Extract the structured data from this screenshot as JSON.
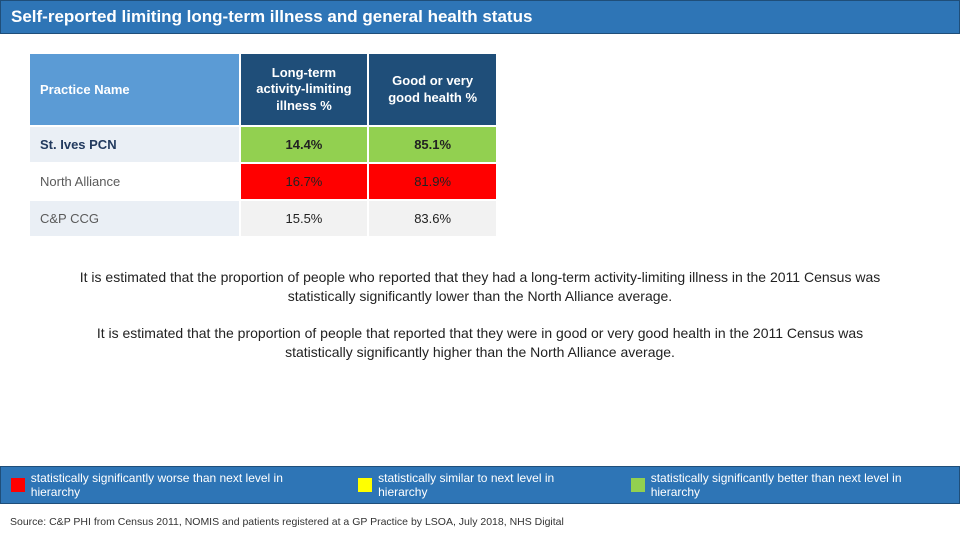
{
  "title": "Self-reported limiting long-term illness and general health status",
  "table": {
    "columns": [
      "Practice Name",
      "Long-term activity-limiting illness %",
      "Good or very good health %"
    ],
    "rows": [
      {
        "name": "St. Ives PCN",
        "bold": true,
        "alt_bg": "#eaeff5",
        "cells": [
          {
            "value": "14.4%",
            "bg": "#92d050",
            "bold": true
          },
          {
            "value": "85.1%",
            "bg": "#92d050",
            "bold": true
          }
        ]
      },
      {
        "name": "North Alliance",
        "bold": false,
        "alt_bg": "#ffffff",
        "cells": [
          {
            "value": "16.7%",
            "bg": "#ff0000",
            "bold": false
          },
          {
            "value": "81.9%",
            "bg": "#ff0000",
            "bold": false
          }
        ]
      },
      {
        "name": "C&P CCG",
        "bold": false,
        "alt_bg": "#eaeff5",
        "cells": [
          {
            "value": "15.5%",
            "bg": "#f2f2f2",
            "bold": false
          },
          {
            "value": "83.6%",
            "bg": "#f2f2f2",
            "bold": false
          }
        ]
      }
    ]
  },
  "paragraphs": [
    "It is estimated that the proportion of people who reported that they had a long-term activity-limiting illness in the 2011 Census was statistically significantly lower than the North Alliance average.",
    "It is estimated that the proportion of people that reported that they were in good or very good health in the 2011 Census was statistically significantly higher than the North Alliance average."
  ],
  "legend": {
    "bar_bg": "#2e75b6",
    "items": [
      {
        "color": "#ff0000",
        "label": "statistically significantly worse than next level in hierarchy"
      },
      {
        "color": "#ffff00",
        "label": "statistically similar to next level in hierarchy"
      },
      {
        "color": "#92d050",
        "label": "statistically significantly better than next level in hierarchy"
      }
    ]
  },
  "source": "Source: C&P PHI from Census 2011, NOMIS and patients registered at a GP Practice by LSOA, July 2018, NHS Digital",
  "colors": {
    "title_bar": "#2e75b6",
    "header_dark": "#1f4e79",
    "header_light": "#5b9bd5"
  }
}
